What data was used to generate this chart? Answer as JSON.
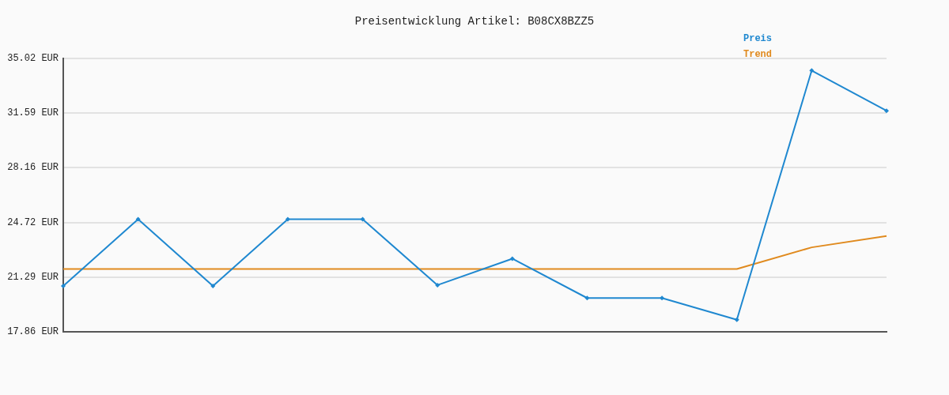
{
  "chart_data": {
    "type": "line",
    "title": "Preisentwicklung Artikel: B08CX8BZZ5",
    "categories": [
      null,
      null,
      null,
      null,
      null,
      null,
      null,
      null,
      null,
      null,
      null,
      null
    ],
    "series": [
      {
        "name": "Preis",
        "color": "#1f88d0",
        "marker": "diamond",
        "values": [
          20.74,
          24.93,
          20.74,
          24.93,
          24.93,
          20.79,
          22.45,
          19.98,
          19.98,
          18.62,
          34.26,
          31.74
        ]
      },
      {
        "name": "Trend",
        "color": "#e08a1e",
        "marker": "none",
        "values": [
          21.8,
          21.8,
          21.8,
          21.8,
          21.8,
          21.8,
          21.8,
          21.8,
          21.8,
          21.8,
          23.16,
          23.87
        ]
      }
    ],
    "ylim": [
      17.86,
      35.02
    ],
    "yticks": [
      {
        "value": 17.86,
        "label": "17.86 EUR"
      },
      {
        "value": 21.29,
        "label": "21.29 EUR"
      },
      {
        "value": 24.72,
        "label": "24.72 EUR"
      },
      {
        "value": 28.16,
        "label": "28.16 EUR"
      },
      {
        "value": 31.59,
        "label": "31.59 EUR"
      },
      {
        "value": 35.02,
        "label": "35.02 EUR"
      }
    ],
    "grid": "y",
    "legend": "top right",
    "line_style": "solid"
  }
}
